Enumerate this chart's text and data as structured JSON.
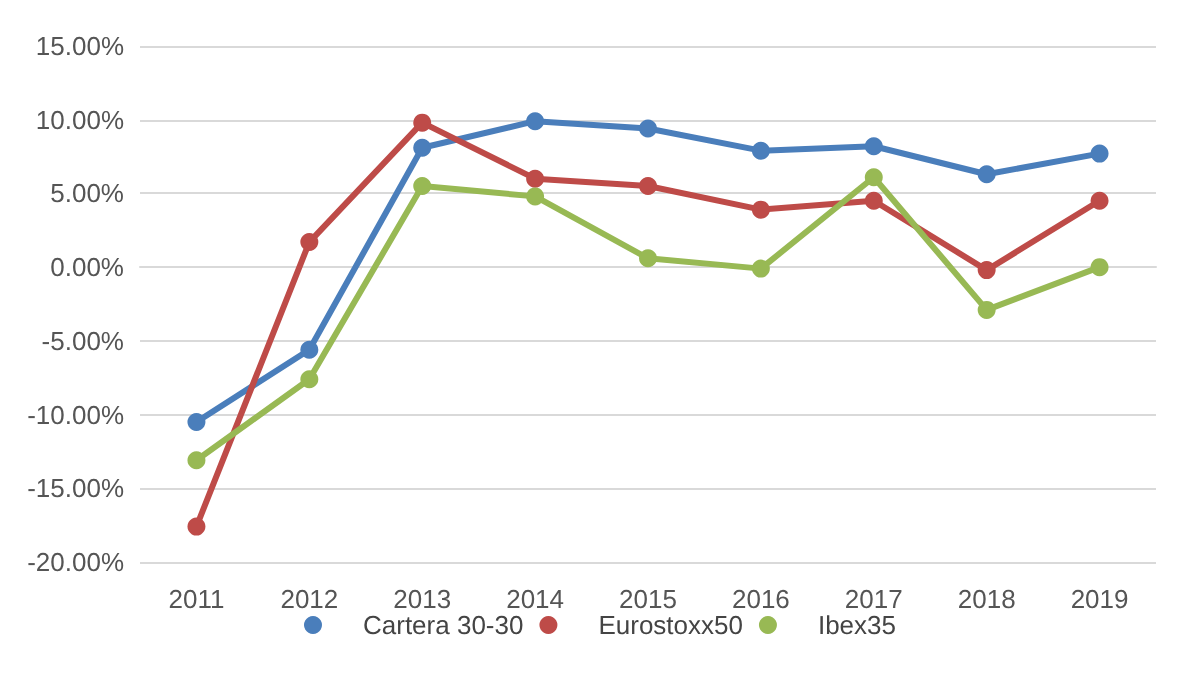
{
  "chart_data": {
    "type": "line",
    "categories": [
      "2011",
      "2012",
      "2013",
      "2014",
      "2015",
      "2016",
      "2017",
      "2018",
      "2019"
    ],
    "series": [
      {
        "name": "Cartera 30-30",
        "color": "#4a7ebb",
        "values": [
          -10.5,
          -5.6,
          8.1,
          9.9,
          9.4,
          7.9,
          8.2,
          6.3,
          7.7
        ]
      },
      {
        "name": "Eurostoxx50",
        "color": "#be4b48",
        "values": [
          -17.6,
          1.7,
          9.8,
          6.0,
          5.5,
          3.9,
          4.5,
          -0.2,
          4.5
        ]
      },
      {
        "name": "Ibex35",
        "color": "#98b954",
        "values": [
          -13.1,
          -7.6,
          5.5,
          4.8,
          0.6,
          -0.1,
          6.1,
          -2.9,
          0.0
        ]
      }
    ],
    "ylim": [
      -20,
      15
    ],
    "yticks": [
      {
        "value": -20,
        "label": "-20.00%"
      },
      {
        "value": -15,
        "label": "-15.00%"
      },
      {
        "value": -10,
        "label": "-10.00%"
      },
      {
        "value": -5,
        "label": "-5.00%"
      },
      {
        "value": 0,
        "label": "0.00%"
      },
      {
        "value": 5,
        "label": "5.00%"
      },
      {
        "value": 10,
        "label": "10.00%"
      },
      {
        "value": 15,
        "label": "15.00%"
      }
    ],
    "grid": "y",
    "legend": "bottom",
    "marker": "circle",
    "line_style": "solid"
  }
}
